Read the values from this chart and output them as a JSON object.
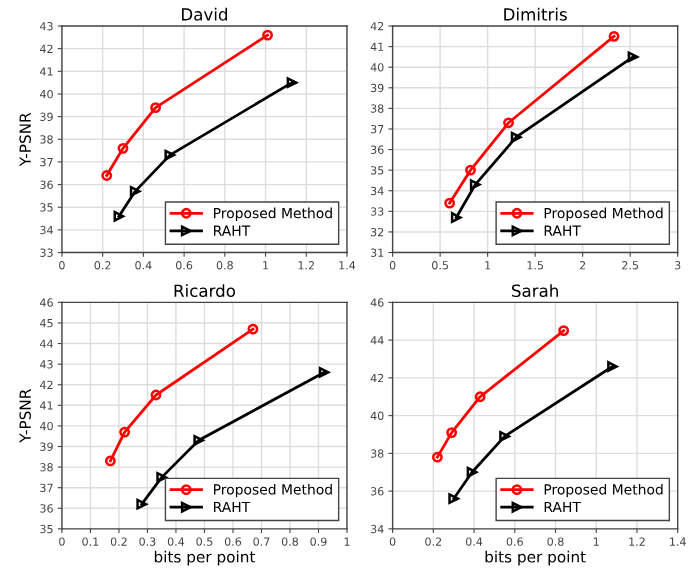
{
  "chart_data": [
    {
      "type": "line",
      "title": "David",
      "ylabel": "Y-PSNR",
      "xlim": [
        0,
        1.4
      ],
      "xticks": [
        0,
        0.2,
        0.4,
        0.6,
        0.8,
        1,
        1.2,
        1.4
      ],
      "ylim": [
        33,
        43
      ],
      "yticks": [
        33,
        34,
        35,
        36,
        37,
        38,
        39,
        40,
        41,
        42,
        43
      ],
      "grid": true,
      "legend": "bottom right",
      "series": [
        {
          "name": "Proposed Method",
          "color": "#ff0000",
          "marker": "circle",
          "x": [
            0.22,
            0.3,
            0.46,
            1.01
          ],
          "values": [
            36.4,
            37.6,
            39.4,
            42.6
          ]
        },
        {
          "name": "RAHT",
          "color": "#000000",
          "marker": "triangle",
          "x": [
            0.28,
            0.36,
            0.53,
            1.13
          ],
          "values": [
            34.6,
            35.7,
            37.3,
            40.5
          ]
        }
      ]
    },
    {
      "type": "line",
      "title": "Dimitris",
      "xlim": [
        0,
        3
      ],
      "xticks": [
        0,
        0.5,
        1,
        1.5,
        2,
        2.5,
        3
      ],
      "ylim": [
        31,
        42
      ],
      "yticks": [
        31,
        32,
        33,
        34,
        35,
        36,
        37,
        38,
        39,
        40,
        41,
        42
      ],
      "grid": true,
      "legend": "bottom right",
      "series": [
        {
          "name": "Proposed Method",
          "color": "#ff0000",
          "marker": "circle",
          "x": [
            0.6,
            0.82,
            1.22,
            2.33
          ],
          "values": [
            33.4,
            35.0,
            37.3,
            41.5
          ]
        },
        {
          "name": "RAHT",
          "color": "#000000",
          "marker": "triangle",
          "x": [
            0.67,
            0.87,
            1.3,
            2.53
          ],
          "values": [
            32.7,
            34.3,
            36.6,
            40.5
          ]
        }
      ]
    },
    {
      "type": "line",
      "title": "Ricardo",
      "xlabel": "bits per point",
      "ylabel": "Y-PSNR",
      "xlim": [
        0,
        1
      ],
      "xticks": [
        0,
        0.1,
        0.2,
        0.3,
        0.4,
        0.5,
        0.6,
        0.7,
        0.8,
        0.9,
        1
      ],
      "ylim": [
        35,
        46
      ],
      "yticks": [
        35,
        36,
        37,
        38,
        39,
        40,
        41,
        42,
        43,
        44,
        45,
        46
      ],
      "grid": true,
      "legend": "bottom right",
      "series": [
        {
          "name": "Proposed Method",
          "color": "#ff0000",
          "marker": "circle",
          "x": [
            0.17,
            0.22,
            0.33,
            0.67
          ],
          "values": [
            38.3,
            39.7,
            41.5,
            44.7
          ]
        },
        {
          "name": "RAHT",
          "color": "#000000",
          "marker": "triangle",
          "x": [
            0.28,
            0.35,
            0.48,
            0.92
          ],
          "values": [
            36.2,
            37.5,
            39.3,
            42.6
          ]
        }
      ]
    },
    {
      "type": "line",
      "title": "Sarah",
      "xlabel": "bits per point",
      "xlim": [
        0,
        1.4
      ],
      "xticks": [
        0,
        0.2,
        0.4,
        0.6,
        0.8,
        1,
        1.2,
        1.4
      ],
      "ylim": [
        34,
        46
      ],
      "yticks": [
        34,
        36,
        38,
        40,
        42,
        44,
        46
      ],
      "grid": true,
      "legend": "bottom right",
      "series": [
        {
          "name": "Proposed Method",
          "color": "#ff0000",
          "marker": "circle",
          "x": [
            0.22,
            0.29,
            0.43,
            0.84
          ],
          "values": [
            37.8,
            39.1,
            41.0,
            44.5
          ]
        },
        {
          "name": "RAHT",
          "color": "#000000",
          "marker": "triangle",
          "x": [
            0.3,
            0.39,
            0.55,
            1.08
          ],
          "values": [
            35.6,
            37.0,
            38.9,
            42.6
          ]
        }
      ]
    }
  ]
}
